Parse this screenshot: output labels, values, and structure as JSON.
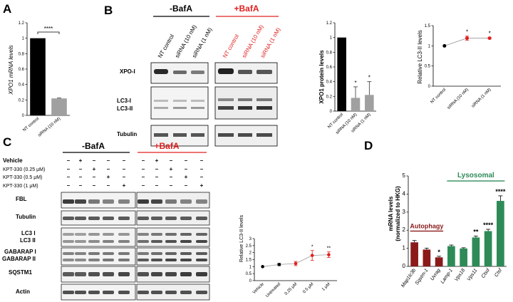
{
  "panel_labels": {
    "a": "A",
    "b": "B",
    "c": "C",
    "d": "D"
  },
  "colors": {
    "red": "#e02020",
    "dark_red": "#8b1a1a",
    "green": "#2e8b57",
    "grey": "#a0a0a0",
    "black": "#000000"
  },
  "panel_b": {
    "group_minus": "-BafA",
    "group_plus": "+BafA",
    "lane_labels_minus": [
      "NT control",
      "siRNA (10 nM)",
      "siRNA (1 nM)"
    ],
    "lane_labels_plus": [
      "NT control",
      "siRNA (10 nM)",
      "siRNA (1 nM)"
    ],
    "blot_labels": {
      "xpo": "XPO-I",
      "lc3_1": "LC3-I",
      "lc3_2": "LC3-II",
      "tubulin": "Tubulin"
    }
  },
  "panel_c": {
    "group_minus": "-BafA",
    "group_plus": "+BafA",
    "treatments": [
      {
        "label": "Vehicle",
        "marks": [
          "–",
          "+",
          "–",
          "–",
          "–",
          "–",
          "+",
          "–",
          "–",
          "–"
        ]
      },
      {
        "label": "KPT-330 (0.25 μM)",
        "marks": [
          "–",
          "–",
          "+",
          "–",
          "–",
          "–",
          "–",
          "+",
          "–",
          "–"
        ]
      },
      {
        "label": "KPT-330 (0.5 μM)",
        "marks": [
          "–",
          "–",
          "–",
          "+",
          "–",
          "–",
          "–",
          "–",
          "+",
          "–"
        ]
      },
      {
        "label": "KPT-330 (1 μM)",
        "marks": [
          "–",
          "–",
          "–",
          "–",
          "+",
          "–",
          "–",
          "–",
          "–",
          "+"
        ]
      }
    ],
    "blot_labels": {
      "fbl": "FBL",
      "tubulin": "Tubulin",
      "lc3_1": "LC3 I",
      "lc3_2": "LC3 II",
      "gab_1": "GABARAP I",
      "gab_2": "GABARAP II",
      "sqstm": "SQSTM1",
      "actin": "Actin"
    }
  },
  "chart_data": [
    {
      "id": "A",
      "type": "bar",
      "categories": [
        "NT control",
        "siRNA (10 nM)"
      ],
      "values": [
        1.0,
        0.22
      ],
      "errors": [
        0,
        0.005
      ],
      "ylabel": "XPO1 mRNA levels",
      "ylim": [
        0,
        1.2
      ],
      "yticks": [
        "0",
        "0.2",
        "0.4",
        "0.6",
        "0.8",
        "1",
        "1.2"
      ],
      "significance": "****",
      "bar_colors": [
        "#000000",
        "#a0a0a0"
      ]
    },
    {
      "id": "B-protein",
      "type": "bar",
      "categories": [
        "NT control",
        "siRNA (10 nM)",
        "siRNA (1 nM)"
      ],
      "values": [
        1.0,
        0.18,
        0.22
      ],
      "errors": [
        0,
        0.15,
        0.18
      ],
      "ylabel": "XPO1 protein levels",
      "ylim": [
        0,
        1.2
      ],
      "yticks": [
        "0",
        "0.2",
        "0.4",
        "0.6",
        "0.8",
        "1",
        "1.2"
      ],
      "significance": [
        "",
        "*",
        "*"
      ],
      "bar_colors": [
        "#000000",
        "#a0a0a0",
        "#a0a0a0"
      ]
    },
    {
      "id": "B-lc3",
      "type": "line",
      "categories": [
        "NT control",
        "siRNA (10 nM)",
        "siRNA (1 nM)"
      ],
      "values": [
        1.0,
        1.19,
        1.19
      ],
      "errors": [
        0,
        0.05,
        0.02
      ],
      "ylabel": "Relative LC3-II levels",
      "ylim": [
        0,
        1.5
      ],
      "yticks": [
        "0",
        "0.5",
        "1",
        "1.5"
      ],
      "significance": [
        "",
        "*",
        "*"
      ],
      "point_colors": [
        "#000000",
        "#e02020",
        "#e02020"
      ]
    },
    {
      "id": "C-lc3",
      "type": "line",
      "categories": [
        "Vehicle",
        "Untreated",
        "0.25 μM",
        "0.5 μM",
        "1 μM"
      ],
      "values": [
        1.0,
        1.15,
        1.22,
        1.8,
        1.85
      ],
      "errors": [
        0,
        0.08,
        0.15,
        0.35,
        0.2
      ],
      "ylabel": "Relative LC3-II levels",
      "ylim": [
        0,
        3
      ],
      "yticks": [
        "0",
        "0.5",
        "1",
        "1.5",
        "2",
        "2.5",
        "3"
      ],
      "significance": [
        "",
        "",
        "",
        "*",
        "**"
      ],
      "point_colors": [
        "#000000",
        "#000000",
        "#e02020",
        "#e02020",
        "#e02020"
      ]
    },
    {
      "id": "D",
      "type": "bar",
      "categories": [
        "Map1lc3b",
        "Sqstm-1",
        "Uvrag",
        "Lamp-1",
        "Vps18",
        "Vps11",
        "Ctsd",
        "Ctsf"
      ],
      "values": [
        1.33,
        0.93,
        0.5,
        1.12,
        0.99,
        1.6,
        1.95,
        3.62
      ],
      "errors": [
        0.1,
        0.08,
        0.06,
        0.06,
        0.04,
        0.08,
        0.1,
        0.28
      ],
      "ylabel": "mRNA levels",
      "ylabel2": "(normalized to HKG)",
      "ylim": [
        0,
        5
      ],
      "yticks": [
        "0",
        "1",
        "2",
        "3",
        "4",
        "5"
      ],
      "significance": [
        "",
        "",
        "*",
        "",
        "",
        "**",
        "****",
        "****"
      ],
      "group_autophagy": "Autophagy",
      "group_lysosomal": "Lysosomal",
      "bar_colors": [
        "#8b1a1a",
        "#8b1a1a",
        "#8b1a1a",
        "#2e8b57",
        "#2e8b57",
        "#2e8b57",
        "#2e8b57",
        "#2e8b57"
      ]
    }
  ]
}
